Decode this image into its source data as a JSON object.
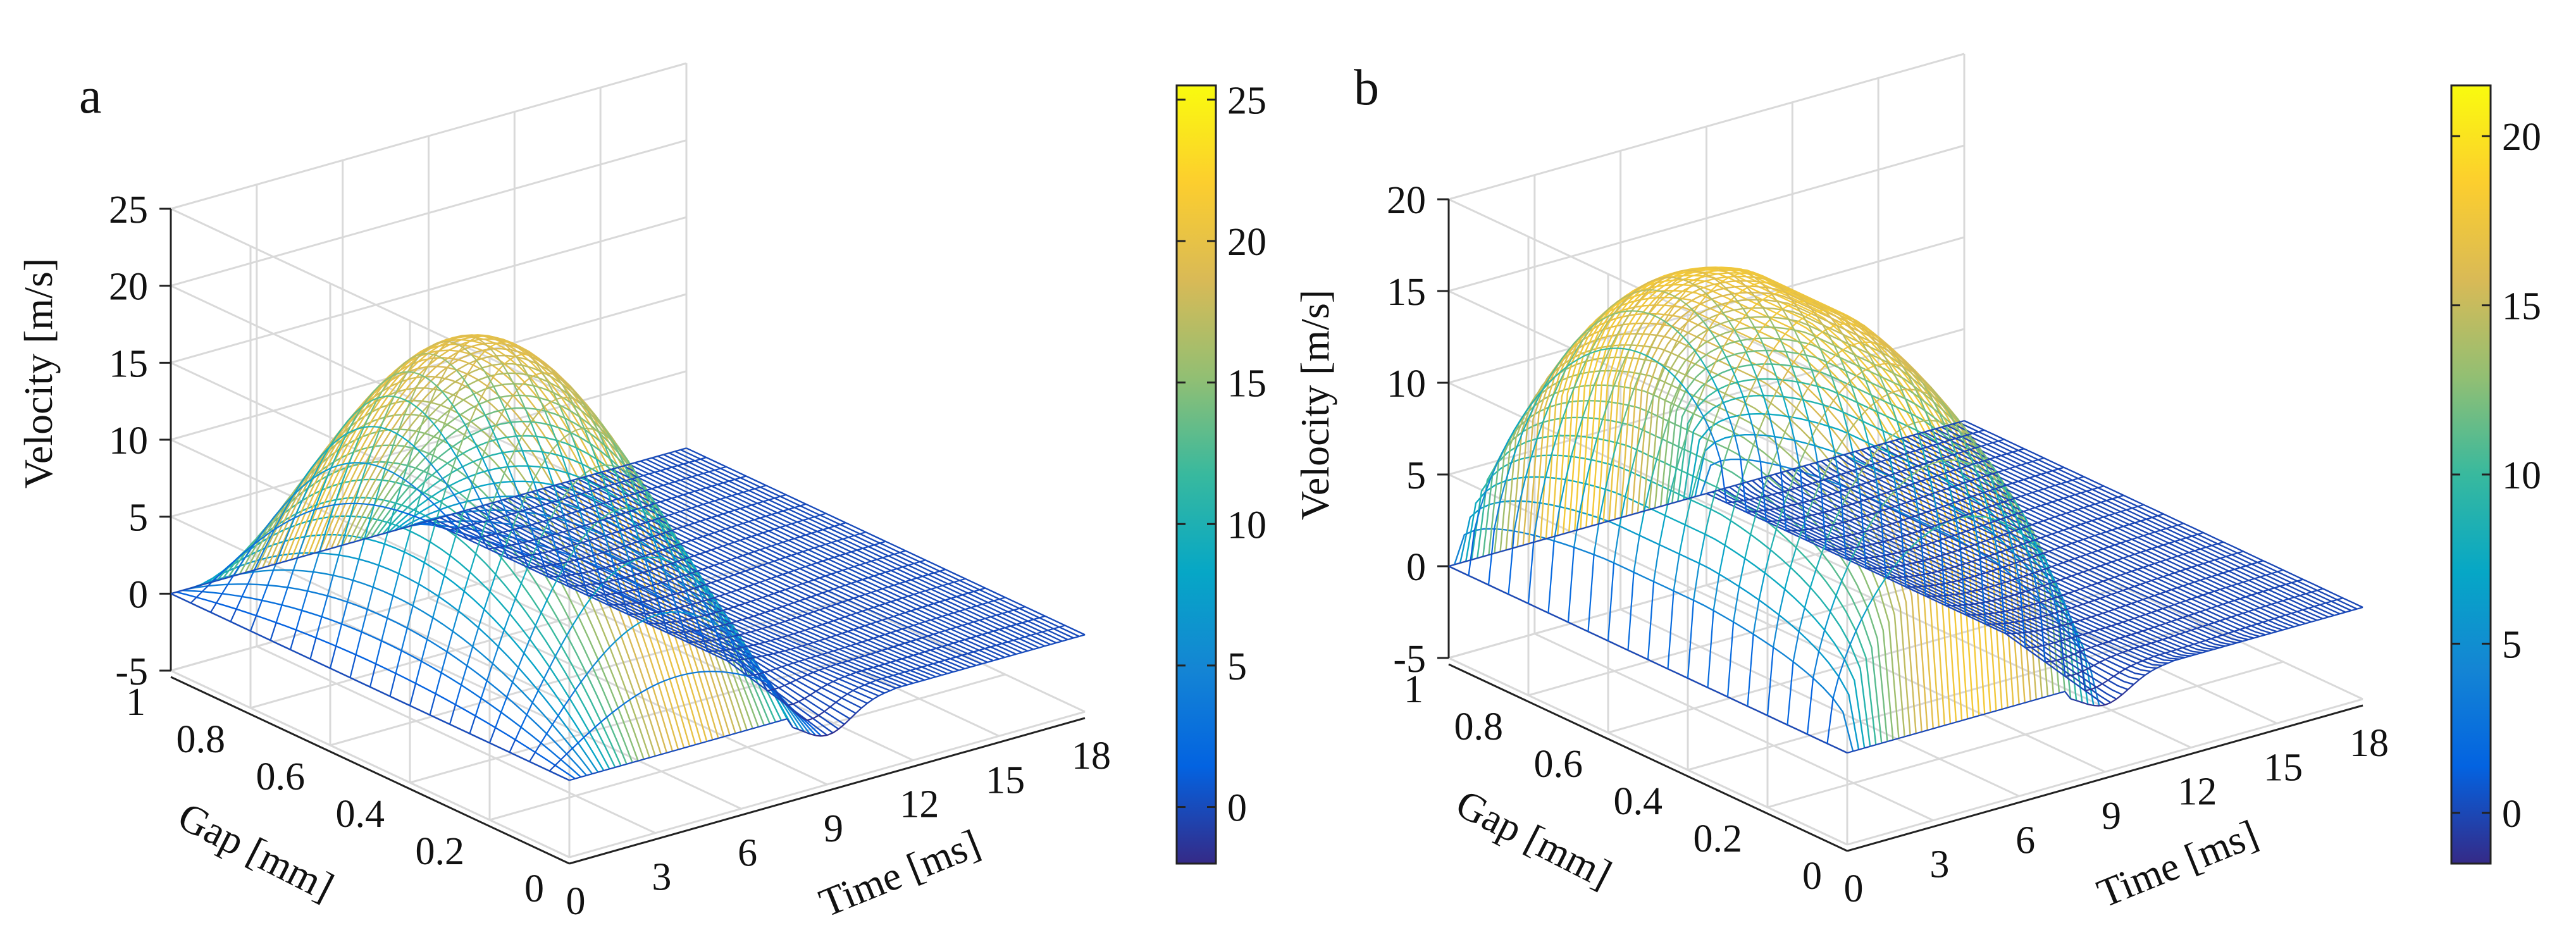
{
  "chart_data": [
    {
      "type": "surface",
      "panel_label": "a",
      "title": "",
      "xlabel": "Time [ms]",
      "ylabel": "Gap [mm]",
      "zlabel": "Velocity [m/s]",
      "xlim": [
        0,
        18
      ],
      "ylim": [
        0,
        1
      ],
      "zlim": [
        -5,
        25
      ],
      "xticks": [
        "0",
        "3",
        "6",
        "9",
        "12",
        "15",
        "18"
      ],
      "yticks": [
        "0",
        "0.2",
        "0.4",
        "0.6",
        "0.8",
        "1"
      ],
      "zticks": [
        "-5",
        "0",
        "5",
        "10",
        "15",
        "20",
        "25"
      ],
      "grid": true,
      "colormap": "parula",
      "colorbar": {
        "clim": [
          -2,
          25.5
        ],
        "ticks": [
          "0",
          "5",
          "10",
          "15",
          "20",
          "25"
        ]
      },
      "surface": {
        "peak_velocity": 20,
        "peak_time": 4.5,
        "pulse_end_time": 9,
        "profile": "parabolic across gap, zero at walls",
        "negative_dip_near_wall": -2
      }
    },
    {
      "type": "surface",
      "panel_label": "b",
      "title": "",
      "xlabel": "Time [ms]",
      "ylabel": "Gap [mm]",
      "zlabel": "Velocity [m/s]",
      "xlim": [
        0,
        18
      ],
      "ylim": [
        0,
        1
      ],
      "zlim": [
        -5,
        20
      ],
      "xticks": [
        "0",
        "3",
        "6",
        "9",
        "12",
        "15",
        "18"
      ],
      "yticks": [
        "0",
        "0.2",
        "0.4",
        "0.6",
        "0.8",
        "1"
      ],
      "zticks": [
        "-5",
        "0",
        "5",
        "10",
        "15",
        "20"
      ],
      "grid": true,
      "colormap": "parula",
      "colorbar": {
        "clim": [
          -1.5,
          21.5
        ],
        "ticks": [
          "0",
          "5",
          "10",
          "15",
          "20"
        ]
      },
      "surface": {
        "peak_velocity": 18,
        "peak_time": 4.5,
        "pulse_end_time": 9,
        "profile": "flattened plug-like across gap, zero at walls",
        "negative_dip_near_wall": -1.5
      }
    }
  ]
}
